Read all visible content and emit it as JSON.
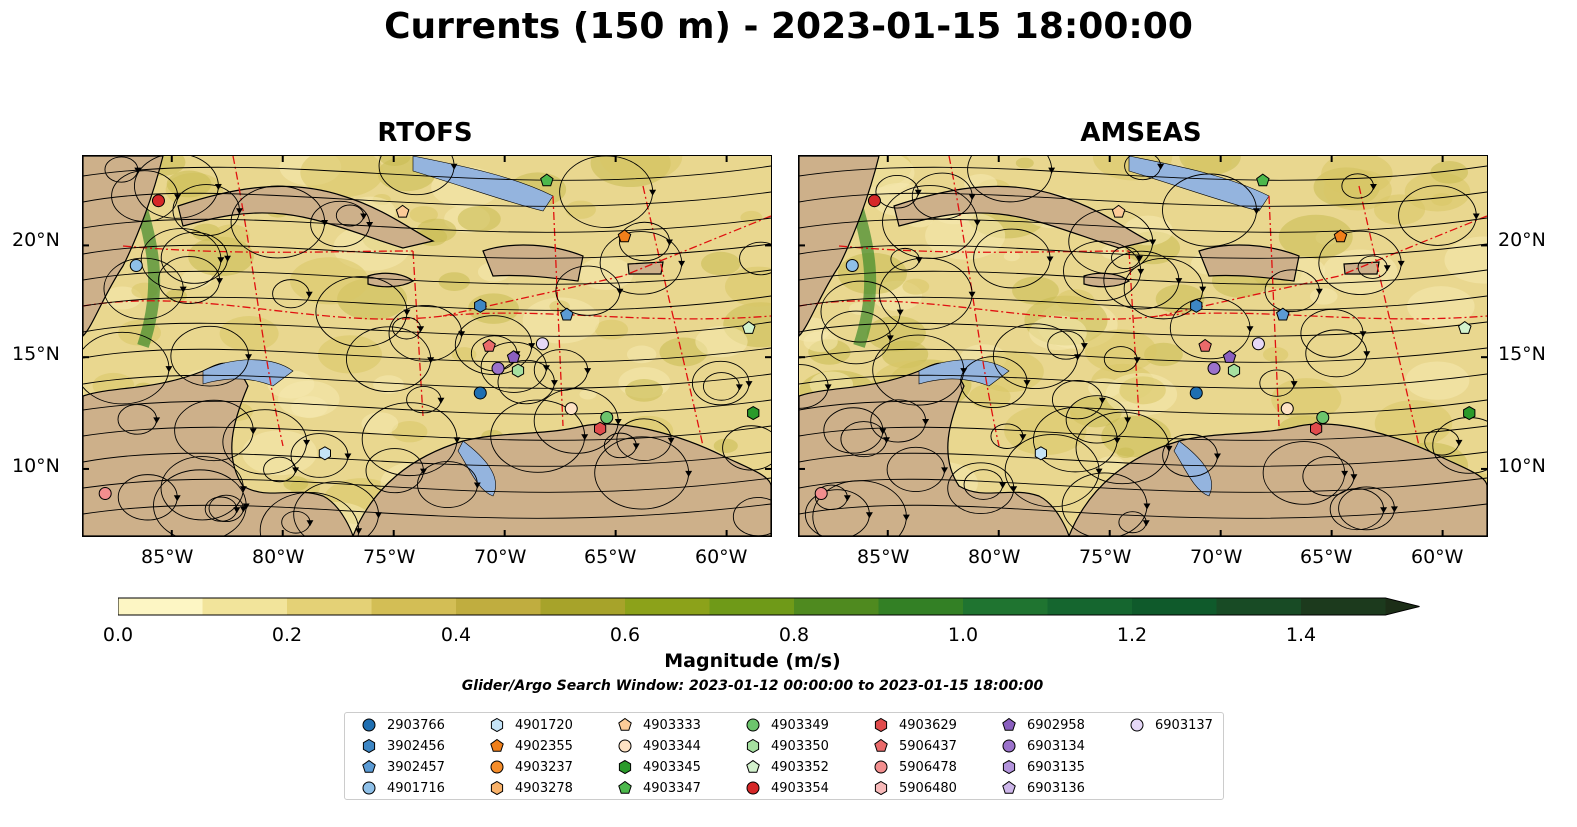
{
  "title": "Currents (150 m) - 2023-01-15 18:00:00",
  "panels": [
    {
      "title": "RTOFS"
    },
    {
      "title": "AMSEAS"
    }
  ],
  "lon_ticks": [
    "85°W",
    "80°W",
    "75°W",
    "70°W",
    "65°W",
    "60°W"
  ],
  "lat_ticks": [
    "20°N",
    "15°N",
    "10°N"
  ],
  "colorbar": {
    "label": "Magnitude (m/s)",
    "ticks": [
      "0.0",
      "0.2",
      "0.4",
      "0.6",
      "0.8",
      "1.0",
      "1.2",
      "1.4"
    ],
    "range": [
      0,
      1.5
    ],
    "colors": [
      "#fdf6c4",
      "#f2e49b",
      "#e4d176",
      "#d3be55",
      "#c0ad3f",
      "#a7a32a",
      "#8ca21a",
      "#6f9a18",
      "#4f8a1f",
      "#338025",
      "#1f7430",
      "#15662f",
      "#0f5a2b",
      "#184b25",
      "#1c3a1d",
      "#1c2e17"
    ]
  },
  "search_window": "Glider/Argo Search Window: 2023-01-12 00:00:00 to 2023-01-15 18:00:00",
  "legend": [
    {
      "id": "2903766",
      "color": "#1f6fb2",
      "shape": "circle"
    },
    {
      "id": "3902456",
      "color": "#3d86c4",
      "shape": "hexagon"
    },
    {
      "id": "3902457",
      "color": "#5b9bd5",
      "shape": "pentagon"
    },
    {
      "id": "4901716",
      "color": "#8fc0e8",
      "shape": "circle"
    },
    {
      "id": "4901720",
      "color": "#c4e3f7",
      "shape": "hexagon"
    },
    {
      "id": "4902355",
      "color": "#f07f1a",
      "shape": "pentagon"
    },
    {
      "id": "4903237",
      "color": "#f58d2a",
      "shape": "circle"
    },
    {
      "id": "4903278",
      "color": "#f9b26a",
      "shape": "hexagon"
    },
    {
      "id": "4903333",
      "color": "#fccb98",
      "shape": "pentagon"
    },
    {
      "id": "4903344",
      "color": "#fde2c4",
      "shape": "circle"
    },
    {
      "id": "4903345",
      "color": "#2a9a2a",
      "shape": "hexagon"
    },
    {
      "id": "4903347",
      "color": "#4cb84c",
      "shape": "pentagon"
    },
    {
      "id": "4903349",
      "color": "#6cc46c",
      "shape": "circle"
    },
    {
      "id": "4903350",
      "color": "#a6e0a0",
      "shape": "hexagon"
    },
    {
      "id": "4903352",
      "color": "#d3f2cd",
      "shape": "pentagon"
    },
    {
      "id": "4903354",
      "color": "#d62728",
      "shape": "circle"
    },
    {
      "id": "4903629",
      "color": "#e04b4c",
      "shape": "hexagon"
    },
    {
      "id": "5906437",
      "color": "#ea6a6a",
      "shape": "pentagon"
    },
    {
      "id": "5906478",
      "color": "#f28e8e",
      "shape": "circle"
    },
    {
      "id": "5906480",
      "color": "#f7b9b9",
      "shape": "hexagon"
    },
    {
      "id": "6902958",
      "color": "#8a5fbf",
      "shape": "pentagon"
    },
    {
      "id": "6903134",
      "color": "#9b72cb",
      "shape": "circle"
    },
    {
      "id": "6903135",
      "color": "#b394dc",
      "shape": "hexagon"
    },
    {
      "id": "6903136",
      "color": "#cdb6ea",
      "shape": "pentagon"
    },
    {
      "id": "6903137",
      "color": "#e6d8f7",
      "shape": "circle"
    }
  ],
  "map_extent": {
    "lon": [
      -89,
      -58
    ],
    "lat": [
      7,
      24
    ]
  },
  "floats": {
    "RTOFS": [
      {
        "id": "4903354",
        "lon": -85.6,
        "lat": 22.0
      },
      {
        "id": "4901716",
        "lon": -86.6,
        "lat": 19.1
      },
      {
        "id": "4903333",
        "lon": -74.6,
        "lat": 21.5
      },
      {
        "id": "4903347",
        "lon": -68.1,
        "lat": 22.9
      },
      {
        "id": "4902355",
        "lon": -64.6,
        "lat": 20.4
      },
      {
        "id": "3902456",
        "lon": -71.1,
        "lat": 17.3
      },
      {
        "id": "3902457",
        "lon": -67.2,
        "lat": 16.9
      },
      {
        "id": "4903352",
        "lon": -59.0,
        "lat": 16.3
      },
      {
        "id": "5906437",
        "lon": -70.7,
        "lat": 15.5
      },
      {
        "id": "6903137",
        "lon": -68.3,
        "lat": 15.6
      },
      {
        "id": "6902958",
        "lon": -69.6,
        "lat": 15.0
      },
      {
        "id": "6903134",
        "lon": -70.3,
        "lat": 14.5
      },
      {
        "id": "4903350",
        "lon": -69.4,
        "lat": 14.4
      },
      {
        "id": "2903766",
        "lon": -71.1,
        "lat": 13.4
      },
      {
        "id": "4903344",
        "lon": -67.0,
        "lat": 12.7
      },
      {
        "id": "4903349",
        "lon": -65.4,
        "lat": 12.3
      },
      {
        "id": "4903629",
        "lon": -65.7,
        "lat": 11.8
      },
      {
        "id": "4903345",
        "lon": -58.8,
        "lat": 12.5
      },
      {
        "id": "4901720",
        "lon": -78.1,
        "lat": 10.7
      },
      {
        "id": "5906478",
        "lon": -88.0,
        "lat": 8.9
      }
    ],
    "AMSEAS": [
      {
        "id": "4903354",
        "lon": -85.6,
        "lat": 22.0
      },
      {
        "id": "4901716",
        "lon": -86.6,
        "lat": 19.1
      },
      {
        "id": "4903333",
        "lon": -74.6,
        "lat": 21.5
      },
      {
        "id": "4903347",
        "lon": -68.1,
        "lat": 22.9
      },
      {
        "id": "4902355",
        "lon": -64.6,
        "lat": 20.4
      },
      {
        "id": "3902456",
        "lon": -71.1,
        "lat": 17.3
      },
      {
        "id": "3902457",
        "lon": -67.2,
        "lat": 16.9
      },
      {
        "id": "4903352",
        "lon": -59.0,
        "lat": 16.3
      },
      {
        "id": "5906437",
        "lon": -70.7,
        "lat": 15.5
      },
      {
        "id": "6903137",
        "lon": -68.3,
        "lat": 15.6
      },
      {
        "id": "6902958",
        "lon": -69.6,
        "lat": 15.0
      },
      {
        "id": "6903134",
        "lon": -70.3,
        "lat": 14.5
      },
      {
        "id": "4903350",
        "lon": -69.4,
        "lat": 14.4
      },
      {
        "id": "2903766",
        "lon": -71.1,
        "lat": 13.4
      },
      {
        "id": "4903344",
        "lon": -67.0,
        "lat": 12.7
      },
      {
        "id": "4903349",
        "lon": -65.4,
        "lat": 12.3
      },
      {
        "id": "4903629",
        "lon": -65.7,
        "lat": 11.8
      },
      {
        "id": "4903345",
        "lon": -58.8,
        "lat": 12.5
      },
      {
        "id": "4901720",
        "lon": -78.1,
        "lat": 10.7
      },
      {
        "id": "5906478",
        "lon": -88.0,
        "lat": 8.9
      }
    ]
  }
}
